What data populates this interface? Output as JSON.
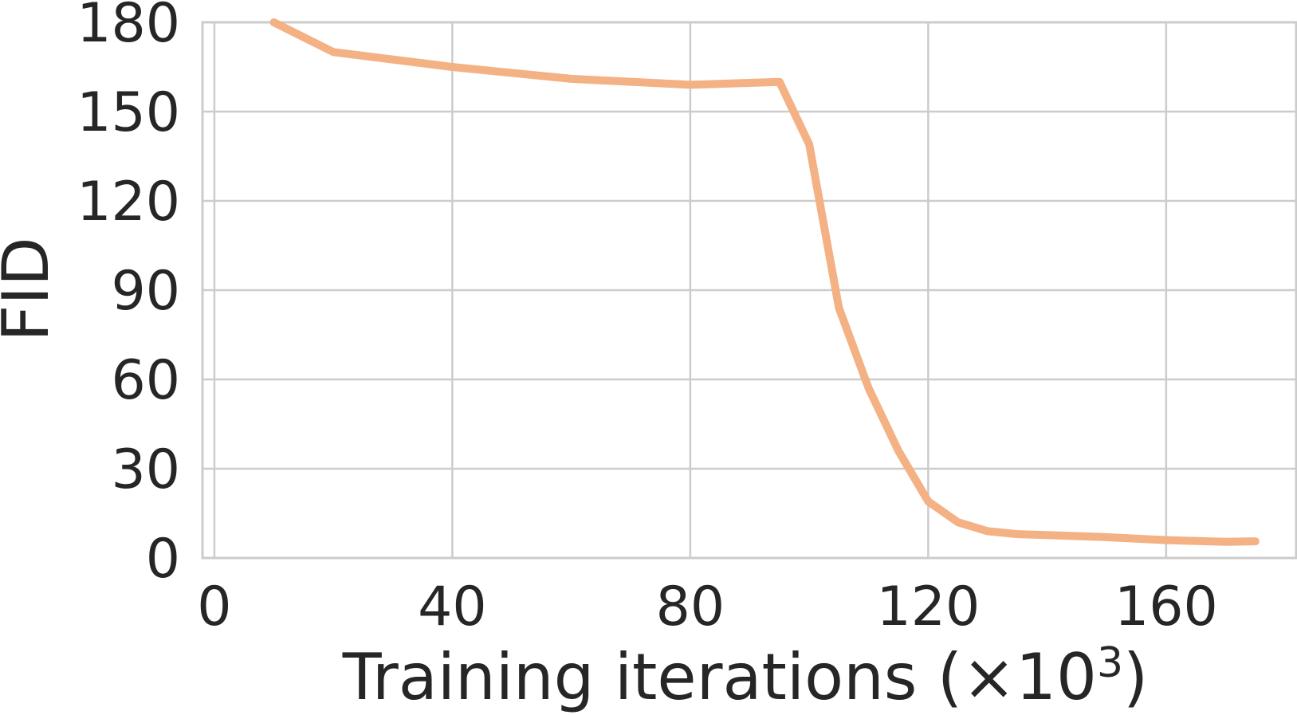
{
  "chart_data": {
    "type": "line",
    "title": "",
    "xlabel": "Training iterations (×10",
    "xlabel_superscript": "3",
    "xlabel_close": ")",
    "ylabel": "FID",
    "xlim": [
      -2,
      182
    ],
    "ylim": [
      0,
      180
    ],
    "xticks": [
      0,
      40,
      80,
      120,
      160
    ],
    "xtick_labels": [
      "0",
      "40",
      "80",
      "120",
      "160"
    ],
    "yticks": [
      0,
      30,
      60,
      90,
      120,
      150,
      180
    ],
    "ytick_labels": [
      "0",
      "30",
      "60",
      "90",
      "120",
      "150",
      "180"
    ],
    "grid": true,
    "grid_color": "#cccccc",
    "series": [
      {
        "color": "#f4b183",
        "x": [
          10,
          20,
          40,
          60,
          80,
          95,
          100,
          105,
          110,
          115,
          120,
          125,
          130,
          135,
          140,
          150,
          160,
          170,
          175
        ],
        "y": [
          180,
          170,
          165,
          161,
          159,
          160,
          139,
          84,
          57,
          36,
          19,
          12,
          9,
          8,
          7.7,
          7,
          6,
          5.4,
          5.6
        ]
      }
    ]
  }
}
